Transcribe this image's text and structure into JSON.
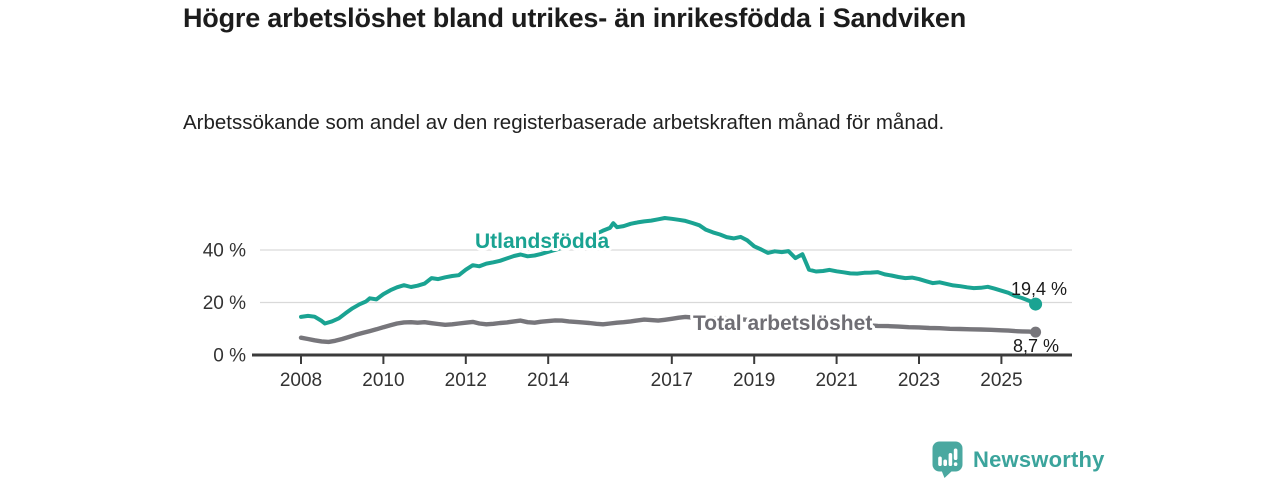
{
  "title": "Högre arbetslöshet bland utrikes- än inrikesfödda i Sandviken",
  "subtitle": "Arbetssökande som andel av den registerbaserade arbetskraften månad för månad.",
  "branding": {
    "logo_text": "Newsworthy",
    "logo_color": "#3ba49c",
    "logo_icon": "bar-chart-speech-bubble"
  },
  "chart_data": {
    "type": "line",
    "title": "Högre arbetslöshet bland utrikes- än inrikesfödda i Sandviken",
    "subtitle": "Arbetssökande som andel av den registerbaserade arbetskraften månad för månad.",
    "xlabel": "",
    "ylabel": "",
    "unit": "%",
    "xlim": [
      2006.85,
      2026.7
    ],
    "ylim": [
      0,
      57
    ],
    "grid": "horizontal",
    "legend_position": "inline-labels",
    "yticks": [
      {
        "value": 0,
        "label": "0 %"
      },
      {
        "value": 20,
        "label": "20 %"
      },
      {
        "value": 40,
        "label": "40 %"
      }
    ],
    "xticks": [
      {
        "value": 2008,
        "label": "2008"
      },
      {
        "value": 2010,
        "label": "2010"
      },
      {
        "value": 2012,
        "label": "2012"
      },
      {
        "value": 2014,
        "label": "2014"
      },
      {
        "value": 2017,
        "label": "2017"
      },
      {
        "value": 2019,
        "label": "2019"
      },
      {
        "value": 2021,
        "label": "2021"
      },
      {
        "value": 2023,
        "label": "2023"
      },
      {
        "value": 2025,
        "label": "2025"
      }
    ],
    "series": [
      {
        "name": "Utlandsfödda",
        "color": "#1aa392",
        "end_value": 19.4,
        "end_label": "19,4 %",
        "points": [
          [
            2008.0,
            14.5
          ],
          [
            2008.17,
            14.9
          ],
          [
            2008.33,
            14.6
          ],
          [
            2008.5,
            13.0
          ],
          [
            2008.58,
            12.0
          ],
          [
            2008.75,
            12.8
          ],
          [
            2008.92,
            14.0
          ],
          [
            2009.08,
            15.9
          ],
          [
            2009.25,
            17.8
          ],
          [
            2009.42,
            19.3
          ],
          [
            2009.58,
            20.4
          ],
          [
            2009.67,
            21.6
          ],
          [
            2009.83,
            21.2
          ],
          [
            2010.0,
            23.2
          ],
          [
            2010.17,
            24.7
          ],
          [
            2010.33,
            25.8
          ],
          [
            2010.5,
            26.6
          ],
          [
            2010.67,
            25.9
          ],
          [
            2010.83,
            26.4
          ],
          [
            2011.0,
            27.2
          ],
          [
            2011.17,
            29.3
          ],
          [
            2011.33,
            28.9
          ],
          [
            2011.5,
            29.6
          ],
          [
            2011.67,
            30.1
          ],
          [
            2011.83,
            30.4
          ],
          [
            2012.0,
            32.5
          ],
          [
            2012.17,
            34.2
          ],
          [
            2012.33,
            33.8
          ],
          [
            2012.5,
            34.8
          ],
          [
            2012.67,
            35.3
          ],
          [
            2012.83,
            35.9
          ],
          [
            2013.0,
            36.8
          ],
          [
            2013.17,
            37.7
          ],
          [
            2013.33,
            38.3
          ],
          [
            2013.5,
            37.6
          ],
          [
            2013.67,
            37.9
          ],
          [
            2013.83,
            38.5
          ],
          [
            2014.0,
            39.3
          ],
          [
            2014.25,
            40.4
          ],
          [
            2014.5,
            41.7
          ],
          [
            2014.75,
            43.1
          ],
          [
            2015.0,
            44.7
          ],
          [
            2015.17,
            46.1
          ],
          [
            2015.33,
            47.4
          ],
          [
            2015.5,
            48.4
          ],
          [
            2015.58,
            50.2
          ],
          [
            2015.67,
            48.7
          ],
          [
            2015.83,
            49.1
          ],
          [
            2016.0,
            50.0
          ],
          [
            2016.17,
            50.5
          ],
          [
            2016.33,
            50.9
          ],
          [
            2016.5,
            51.2
          ],
          [
            2016.67,
            51.7
          ],
          [
            2016.83,
            52.2
          ],
          [
            2017.0,
            51.9
          ],
          [
            2017.17,
            51.5
          ],
          [
            2017.33,
            51.1
          ],
          [
            2017.5,
            50.3
          ],
          [
            2017.67,
            49.4
          ],
          [
            2017.83,
            47.7
          ],
          [
            2018.0,
            46.7
          ],
          [
            2018.17,
            45.9
          ],
          [
            2018.33,
            44.9
          ],
          [
            2018.5,
            44.4
          ],
          [
            2018.67,
            45.0
          ],
          [
            2018.83,
            43.7
          ],
          [
            2019.0,
            41.4
          ],
          [
            2019.17,
            40.2
          ],
          [
            2019.33,
            38.9
          ],
          [
            2019.5,
            39.5
          ],
          [
            2019.67,
            39.2
          ],
          [
            2019.83,
            39.6
          ],
          [
            2020.0,
            36.9
          ],
          [
            2020.17,
            38.4
          ],
          [
            2020.33,
            32.5
          ],
          [
            2020.5,
            31.8
          ],
          [
            2020.67,
            32.0
          ],
          [
            2020.83,
            32.4
          ],
          [
            2021.0,
            31.9
          ],
          [
            2021.17,
            31.5
          ],
          [
            2021.33,
            31.1
          ],
          [
            2021.5,
            31.0
          ],
          [
            2021.67,
            31.3
          ],
          [
            2021.83,
            31.4
          ],
          [
            2022.0,
            31.6
          ],
          [
            2022.17,
            30.7
          ],
          [
            2022.33,
            30.3
          ],
          [
            2022.5,
            29.7
          ],
          [
            2022.67,
            29.3
          ],
          [
            2022.83,
            29.5
          ],
          [
            2023.0,
            28.9
          ],
          [
            2023.17,
            28.1
          ],
          [
            2023.33,
            27.4
          ],
          [
            2023.5,
            27.7
          ],
          [
            2023.67,
            27.1
          ],
          [
            2023.83,
            26.5
          ],
          [
            2024.0,
            26.2
          ],
          [
            2024.17,
            25.8
          ],
          [
            2024.33,
            25.5
          ],
          [
            2024.5,
            25.6
          ],
          [
            2024.67,
            26.0
          ],
          [
            2024.83,
            25.3
          ],
          [
            2025.0,
            24.5
          ],
          [
            2025.17,
            23.7
          ],
          [
            2025.33,
            22.5
          ],
          [
            2025.5,
            21.7
          ],
          [
            2025.67,
            20.7
          ],
          [
            2025.83,
            19.4
          ]
        ]
      },
      {
        "name": "Total arbetslöshet",
        "color": "#77767b",
        "end_value": 8.7,
        "end_label": "8,7 %",
        "points": [
          [
            2008.0,
            6.6
          ],
          [
            2008.17,
            6.1
          ],
          [
            2008.33,
            5.6
          ],
          [
            2008.5,
            5.2
          ],
          [
            2008.67,
            5.0
          ],
          [
            2008.83,
            5.4
          ],
          [
            2009.0,
            6.1
          ],
          [
            2009.17,
            6.9
          ],
          [
            2009.33,
            7.7
          ],
          [
            2009.5,
            8.4
          ],
          [
            2009.67,
            9.1
          ],
          [
            2009.83,
            9.8
          ],
          [
            2010.0,
            10.6
          ],
          [
            2010.17,
            11.3
          ],
          [
            2010.33,
            12.0
          ],
          [
            2010.5,
            12.4
          ],
          [
            2010.67,
            12.5
          ],
          [
            2010.83,
            12.3
          ],
          [
            2011.0,
            12.5
          ],
          [
            2011.17,
            12.1
          ],
          [
            2011.33,
            11.8
          ],
          [
            2011.5,
            11.5
          ],
          [
            2011.67,
            11.7
          ],
          [
            2011.83,
            12.0
          ],
          [
            2012.0,
            12.3
          ],
          [
            2012.17,
            12.6
          ],
          [
            2012.33,
            12.0
          ],
          [
            2012.5,
            11.7
          ],
          [
            2012.67,
            11.9
          ],
          [
            2012.83,
            12.2
          ],
          [
            2013.0,
            12.4
          ],
          [
            2013.17,
            12.8
          ],
          [
            2013.33,
            13.1
          ],
          [
            2013.5,
            12.5
          ],
          [
            2013.67,
            12.3
          ],
          [
            2013.83,
            12.7
          ],
          [
            2014.0,
            12.9
          ],
          [
            2014.17,
            13.2
          ],
          [
            2014.33,
            13.1
          ],
          [
            2014.5,
            12.8
          ],
          [
            2014.67,
            12.6
          ],
          [
            2014.83,
            12.4
          ],
          [
            2015.0,
            12.2
          ],
          [
            2015.17,
            11.9
          ],
          [
            2015.33,
            11.7
          ],
          [
            2015.5,
            12.0
          ],
          [
            2015.67,
            12.3
          ],
          [
            2015.83,
            12.5
          ],
          [
            2016.0,
            12.8
          ],
          [
            2016.17,
            13.2
          ],
          [
            2016.33,
            13.5
          ],
          [
            2016.5,
            13.3
          ],
          [
            2016.67,
            13.1
          ],
          [
            2016.83,
            13.4
          ],
          [
            2017.0,
            13.8
          ],
          [
            2017.17,
            14.2
          ],
          [
            2017.33,
            14.5
          ],
          [
            2017.5,
            14.3
          ],
          [
            2017.67,
            14.0
          ],
          [
            2017.83,
            13.8
          ],
          [
            2018.0,
            13.9
          ],
          [
            2018.25,
            14.1
          ],
          [
            2018.5,
            13.8
          ],
          [
            2018.75,
            13.5
          ],
          [
            2019.0,
            13.2
          ],
          [
            2019.25,
            12.9
          ],
          [
            2019.5,
            12.7
          ],
          [
            2019.75,
            12.6
          ],
          [
            2020.0,
            12.5
          ],
          [
            2020.25,
            12.9
          ],
          [
            2020.5,
            13.0
          ],
          [
            2020.75,
            12.7
          ],
          [
            2021.0,
            12.3
          ],
          [
            2021.25,
            11.9
          ],
          [
            2021.5,
            11.6
          ],
          [
            2021.75,
            11.3
          ],
          [
            2022.0,
            11.1
          ],
          [
            2022.25,
            11.0
          ],
          [
            2022.5,
            10.8
          ],
          [
            2022.75,
            10.6
          ],
          [
            2023.0,
            10.5
          ],
          [
            2023.25,
            10.3
          ],
          [
            2023.5,
            10.2
          ],
          [
            2023.75,
            10.0
          ],
          [
            2024.0,
            9.9
          ],
          [
            2024.25,
            9.8
          ],
          [
            2024.5,
            9.7
          ],
          [
            2024.75,
            9.6
          ],
          [
            2025.0,
            9.4
          ],
          [
            2025.17,
            9.3
          ],
          [
            2025.33,
            9.1
          ],
          [
            2025.5,
            9.0
          ],
          [
            2025.67,
            8.9
          ],
          [
            2025.83,
            8.7
          ]
        ]
      }
    ]
  }
}
